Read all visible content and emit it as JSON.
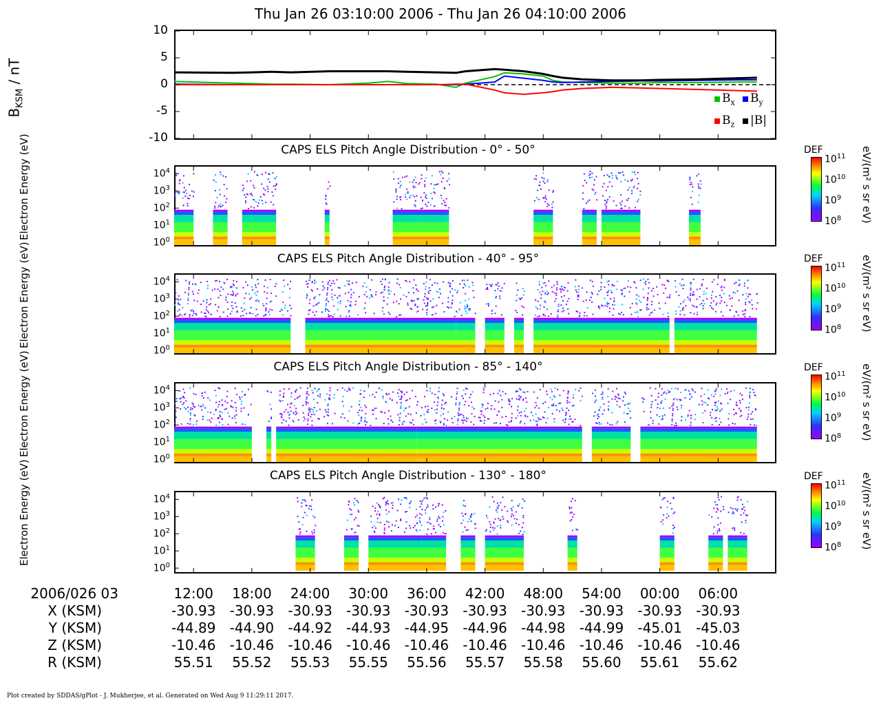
{
  "title": "Thu Jan 26 03:10:00 2006 - Thu Jan 26 04:10:00 2006",
  "footer": "Plot created by SDDAS/gPlot - J. Mukherjee, et al.  Generated on Wed Aug 9 11:29:11 2017.",
  "colors": {
    "Bx": "#00c000",
    "By": "#0000ff",
    "Bz": "#ff0000",
    "B": "#000000"
  },
  "chart_data": [
    {
      "type": "line",
      "title": "",
      "ylabel": "B_KSM / nT",
      "ylabel_main": "B",
      "ylabel_sub": "KSM",
      "ylabel_unit": "/ nT",
      "ylim": [
        -10,
        10
      ],
      "yticks": [
        "10",
        "5",
        "0",
        "-5",
        "-10"
      ],
      "x_minutes_after_0310": [
        0,
        6,
        8,
        10,
        12,
        16,
        20,
        22,
        24,
        27,
        29,
        30,
        33,
        34,
        36,
        38,
        39,
        40,
        42,
        45,
        48,
        50,
        54,
        58,
        60
      ],
      "series": [
        {
          "name": "B_x",
          "values": [
            0.6,
            0.3,
            0.2,
            0.1,
            0.1,
            0.0,
            0.3,
            0.6,
            0.2,
            0.1,
            -0.5,
            0.3,
            1.5,
            2.2,
            2.0,
            1.6,
            0.8,
            0.5,
            0.4,
            0.3,
            0.3,
            0.4,
            0.4,
            0.5,
            0.5
          ]
        },
        {
          "name": "B_y",
          "values": [
            0.1,
            0.0,
            0.0,
            0.0,
            0.0,
            0.0,
            0.0,
            0.0,
            0.0,
            0.0,
            0.0,
            0.1,
            0.5,
            1.6,
            1.2,
            0.8,
            0.5,
            0.4,
            0.5,
            0.6,
            0.7,
            0.7,
            0.8,
            0.9,
            0.9
          ]
        },
        {
          "name": "B_z",
          "values": [
            0.0,
            0.0,
            0.0,
            0.0,
            0.0,
            0.0,
            0.0,
            0.0,
            0.0,
            0.0,
            0.1,
            0.1,
            -1.0,
            -1.5,
            -1.8,
            -1.5,
            -1.3,
            -1.0,
            -0.7,
            -0.5,
            -0.6,
            -0.7,
            -0.9,
            -1.1,
            -1.2
          ]
        },
        {
          "name": "|B|",
          "values": [
            2.3,
            2.2,
            2.3,
            2.4,
            2.3,
            2.5,
            2.5,
            2.5,
            2.4,
            2.3,
            2.2,
            2.5,
            2.9,
            2.8,
            2.5,
            2.0,
            1.6,
            1.3,
            1.0,
            0.8,
            0.8,
            0.9,
            1.0,
            1.2,
            1.3
          ]
        }
      ],
      "legend": [
        "B_x",
        "B_y",
        "B_z",
        "|B|"
      ],
      "legend_placement": "bottom-right"
    },
    {
      "type": "heatmap",
      "title": "CAPS ELS Pitch Angle Distribution - 0° - 50°",
      "ylabel": "Electron Energy (eV)",
      "yscale": "log",
      "ylim": [
        0.7,
        26000
      ],
      "yticks": [
        "10^4",
        "10^3",
        "10^2",
        "10^1",
        "10^0"
      ],
      "data_intervals_minutes": [
        [
          0,
          2
        ],
        [
          4,
          5.5
        ],
        [
          7,
          10.5
        ],
        [
          15.5,
          16
        ],
        [
          22.5,
          25.5
        ],
        [
          25.5,
          28
        ],
        [
          28,
          28.3
        ],
        [
          37,
          39
        ],
        [
          42,
          43.5
        ],
        [
          44,
          48
        ],
        [
          53,
          54.2
        ]
      ],
      "colorbar": {
        "label": "DEF",
        "unit": "eV/(m² s sr eV)",
        "ticks": [
          "10^11",
          "10^10",
          "10^9",
          "10^8"
        ]
      }
    },
    {
      "type": "heatmap",
      "title": "CAPS ELS Pitch Angle Distribution - 40° - 95°",
      "ylabel": "Electron Energy (eV)",
      "yscale": "log",
      "ylim": [
        0.7,
        26000
      ],
      "yticks": [
        "10^4",
        "10^3",
        "10^2",
        "10^1",
        "10^0"
      ],
      "data_intervals_minutes": [
        [
          0,
          12
        ],
        [
          13.5,
          29
        ],
        [
          29,
          31
        ],
        [
          32,
          34
        ],
        [
          35,
          36
        ],
        [
          37,
          51
        ],
        [
          51.5,
          60
        ]
      ],
      "colorbar": {
        "label": "DEF",
        "unit": "eV/(m² s sr eV)",
        "ticks": [
          "10^11",
          "10^10",
          "10^9",
          "10^8"
        ]
      }
    },
    {
      "type": "heatmap",
      "title": "CAPS ELS Pitch Angle Distribution - 85° - 140°",
      "ylabel": "Electron Energy (eV)",
      "yscale": "log",
      "ylim": [
        0.7,
        26000
      ],
      "yticks": [
        "10^4",
        "10^3",
        "10^2",
        "10^1",
        "10^0"
      ],
      "data_intervals_minutes": [
        [
          0,
          8
        ],
        [
          9.5,
          10
        ],
        [
          10.5,
          25
        ],
        [
          25,
          42
        ],
        [
          43,
          47
        ],
        [
          48,
          60
        ]
      ],
      "colorbar": {
        "label": "DEF",
        "unit": "eV/(m² s sr eV)",
        "ticks": [
          "10^11",
          "10^10",
          "10^9",
          "10^8"
        ]
      }
    },
    {
      "type": "heatmap",
      "title": "CAPS ELS Pitch Angle Distribution - 130° - 180°",
      "ylabel": "Electron Energy (eV)",
      "yscale": "log",
      "ylim": [
        0.7,
        26000
      ],
      "yticks": [
        "10^4",
        "10^3",
        "10^2",
        "10^1",
        "10^0"
      ],
      "data_intervals_minutes": [
        [
          12.5,
          14.5
        ],
        [
          17.5,
          19
        ],
        [
          20,
          25.5
        ],
        [
          25.5,
          28
        ],
        [
          29.5,
          31
        ],
        [
          32,
          36
        ],
        [
          40.5,
          41.5
        ],
        [
          50,
          51.5
        ],
        [
          55,
          56.5
        ],
        [
          57,
          59
        ]
      ],
      "colorbar": {
        "label": "DEF",
        "unit": "eV/(m² s sr eV)",
        "ticks": [
          "10^11",
          "10^10",
          "10^9",
          "10^8"
        ]
      }
    }
  ],
  "ephemeris": {
    "start_label": "2006/026 03",
    "times": [
      "12:00",
      "18:00",
      "24:00",
      "30:00",
      "36:00",
      "42:00",
      "48:00",
      "54:00",
      "00:00",
      "06:00"
    ],
    "rows": [
      {
        "label": "X (KSM)",
        "values": [
          "-30.93",
          "-30.93",
          "-30.93",
          "-30.93",
          "-30.93",
          "-30.93",
          "-30.93",
          "-30.93",
          "-30.93",
          "-30.93"
        ]
      },
      {
        "label": "Y (KSM)",
        "values": [
          "-44.89",
          "-44.90",
          "-44.92",
          "-44.93",
          "-44.95",
          "-44.96",
          "-44.98",
          "-44.99",
          "-45.01",
          "-45.03"
        ]
      },
      {
        "label": "Z (KSM)",
        "values": [
          "-10.46",
          "-10.46",
          "-10.46",
          "-10.46",
          "-10.46",
          "-10.46",
          "-10.46",
          "-10.46",
          "-10.46",
          "-10.46"
        ]
      },
      {
        "label": "R (KSM)",
        "values": [
          "55.51",
          "55.52",
          "55.53",
          "55.55",
          "55.56",
          "55.57",
          "55.58",
          "55.60",
          "55.61",
          "55.62"
        ]
      }
    ]
  }
}
